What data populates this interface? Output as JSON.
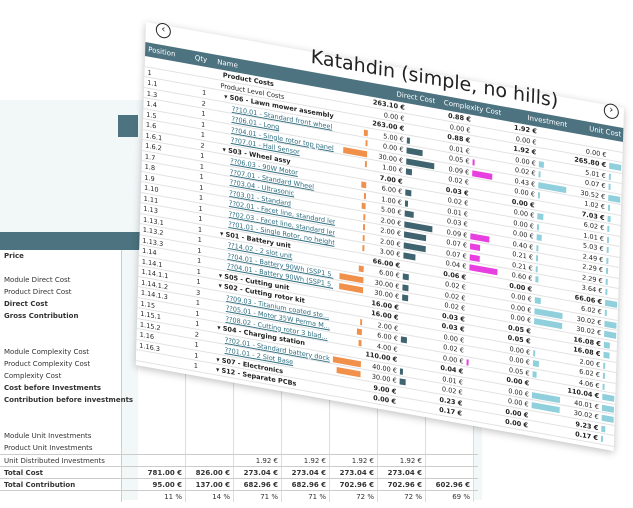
{
  "background_table": {
    "rows": [
      {
        "label": "Price",
        "bold": true,
        "values": []
      },
      {
        "label": "",
        "values": []
      },
      {
        "label": "Module Direct Cost",
        "values": []
      },
      {
        "label": "Product Direct Cost",
        "values": []
      },
      {
        "label": "Direct Cost",
        "bold": true,
        "values": []
      },
      {
        "label": "Gross Contribution",
        "bold": true,
        "values": []
      },
      {
        "label": "",
        "values": []
      },
      {
        "label": "",
        "values": []
      },
      {
        "label": "Module Complexity Cost",
        "values": []
      },
      {
        "label": "Product Complexity Cost",
        "values": []
      },
      {
        "label": "Complexity Cost",
        "values": []
      },
      {
        "label": "Cost before Investments",
        "bold": true,
        "values": []
      },
      {
        "label": "Contribution before investments",
        "bold": true,
        "values": []
      },
      {
        "label": "",
        "values": []
      },
      {
        "label": "",
        "values": []
      },
      {
        "label": "Module Unit Investments",
        "values": []
      },
      {
        "label": "Product Unit Investments",
        "values": []
      },
      {
        "label": "Unit Distributed Investments",
        "values": [
          "",
          "",
          "1.92 €",
          "1.92 €",
          "1.92 €",
          "1.92 €",
          ""
        ]
      },
      {
        "label": "Total Cost",
        "bold": true,
        "values": [
          "781.00 €",
          "826.00 €",
          "273.04 €",
          "273.04 €",
          "273.04 €",
          "273.04 €",
          ""
        ]
      },
      {
        "label": "Total Contribution",
        "bold": true,
        "values": [
          "95.00 €",
          "137.00 €",
          "682.96 €",
          "682.96 €",
          "702.96 €",
          "702.96 €",
          "602.96 €"
        ]
      },
      {
        "label": "",
        "values": [
          "11 %",
          "14 %",
          "71 %",
          "71 %",
          "72 %",
          "72 %",
          "69 %"
        ]
      }
    ]
  },
  "card": {
    "title": "Katahdin (simple, no hills)",
    "prev_icon": "chevron-left-circle",
    "next_icon": "chevron-right-circle",
    "columns": {
      "position": "Position",
      "qty": "Qty",
      "name": "Name",
      "direct": "Direct Cost",
      "complexity": "Complexity Cost",
      "investment": "Investment",
      "unit": "Unit Cost"
    },
    "colors": {
      "header": "#4d7380",
      "direct_bar": "#f0904a",
      "complexity_bar": "#3f6470",
      "investment_bar": "#e83fe0",
      "unit_bar": "#8fd0dc"
    },
    "rows": [
      {
        "pos": "",
        "qty": "",
        "name": "Product Costs",
        "type": "bold",
        "direct": "263.10 €",
        "complexity": "0.88 €",
        "investment": "1.92 €",
        "unit": ""
      },
      {
        "pos": "1",
        "qty": "",
        "name": "Product Level Costs",
        "type": "plain",
        "direct": "0.00 €",
        "complexity": "0.00 €",
        "investment": "0.00 €",
        "unit": "0.00 €"
      },
      {
        "pos": "1.1",
        "qty": "1",
        "name": "▾ S06 - Lawn mower assembly",
        "type": "bold",
        "direct": "263.00 €",
        "complexity": "0.88 €",
        "investment": "1.92 €",
        "unit": "265.80 €"
      },
      {
        "pos": "1.3",
        "qty": "2",
        "name": "??10.01 - Standard front wheel",
        "type": "link",
        "direct": "5.00 €",
        "complexity": "0.01 €",
        "investment": "0.00 €",
        "unit": "5.01 €"
      },
      {
        "pos": "1.4",
        "qty": "1",
        "name": "??06.01 - Long",
        "type": "link",
        "direct": "0.00 €",
        "complexity": "0.05 €",
        "investment": "0.02 €",
        "unit": "0.07 €"
      },
      {
        "pos": "1.5",
        "qty": "1",
        "name": "??04.01 - Single rotor top panel",
        "type": "link",
        "direct": "30.00 €",
        "complexity": "0.09 €",
        "investment": "0.43 €",
        "unit": "30.52 €"
      },
      {
        "pos": "1.6",
        "qty": "1",
        "name": "??07.01 - Hall Sensor",
        "type": "link",
        "direct": "1.00 €",
        "complexity": "0.02 €",
        "investment": "0.00 €",
        "unit": "1.02 €"
      },
      {
        "pos": "1.6.1",
        "qty": "2",
        "name": "▾ S03 - Wheel assy",
        "type": "bold",
        "direct": "7.00 €",
        "complexity": "0.03 €",
        "investment": "0.00 €",
        "unit": "7.03 €"
      },
      {
        "pos": "1.6.2",
        "qty": "1",
        "name": "??06.03 - 90W Motor",
        "type": "link",
        "direct": "6.00 €",
        "complexity": "0.02 €",
        "investment": "0.00 €",
        "unit": "6.02 €"
      },
      {
        "pos": "1.7",
        "qty": "1",
        "name": "??07.01 - Standard Wheel",
        "type": "link",
        "direct": "1.00 €",
        "complexity": "0.01 €",
        "investment": "0.00 €",
        "unit": "1.01 €"
      },
      {
        "pos": "1.8",
        "qty": "1",
        "name": "??03.04 - Ultrasonic",
        "type": "link",
        "direct": "5.00 €",
        "complexity": "0.03 €",
        "investment": "0.00 €",
        "unit": "5.03 €"
      },
      {
        "pos": "1.9",
        "qty": "1",
        "name": "??03.01 - Standard",
        "type": "link",
        "direct": "2.00 €",
        "complexity": "0.09 €",
        "investment": "0.40 €",
        "unit": "2.49 €"
      },
      {
        "pos": "1.10",
        "qty": "1",
        "name": "??02.01 - Facet line, standard length, ...",
        "type": "link",
        "direct": "2.00 €",
        "complexity": "0.07 €",
        "investment": "0.21 €",
        "unit": "2.29 €"
      },
      {
        "pos": "1.11",
        "qty": "1",
        "name": "??02.03 - Facet line, standard length, ...",
        "type": "link",
        "direct": "2.00 €",
        "complexity": "0.07 €",
        "investment": "0.21 €",
        "unit": "2.29 €"
      },
      {
        "pos": "1.13",
        "qty": "1",
        "name": "??01.01 - Single Rotor, no height adju...",
        "type": "link",
        "direct": "3.00 €",
        "complexity": "0.04 €",
        "investment": "0.60 €",
        "unit": "3.64 €"
      },
      {
        "pos": "1.13.1",
        "qty": "1",
        "name": "▾ S01 - Battery unit",
        "type": "bold",
        "direct": "66.00 €",
        "complexity": "0.06 €",
        "investment": "0.00 €",
        "unit": "66.06 €"
      },
      {
        "pos": "1.13.2",
        "qty": "1",
        "name": "??14.02 - 2 slot unit",
        "type": "link",
        "direct": "6.00 €",
        "complexity": "0.02 €",
        "investment": "0.00 €",
        "unit": "6.02 €"
      },
      {
        "pos": "1.13.3",
        "qty": "1",
        "name": "??04.01 - Battery 90Wh (SSP1 5 x...",
        "type": "link",
        "direct": "30.00 €",
        "complexity": "0.02 €",
        "investment": "0.00 €",
        "unit": "30.02 €"
      },
      {
        "pos": "1.14",
        "qty": "1",
        "name": "??04.01 - Battery 90Wh (SSP1 5 x...",
        "type": "link",
        "direct": "30.00 €",
        "complexity": "0.02 €",
        "investment": "0.00 €",
        "unit": "30.02 €"
      },
      {
        "pos": "1.14.1",
        "qty": "1",
        "name": "▾ S05 - Cutting unit",
        "type": "bold",
        "direct": "16.00 €",
        "complexity": "0.03 €",
        "investment": "0.05 €",
        "unit": "16.08 €"
      },
      {
        "pos": "1.14.1.1",
        "qty": "1",
        "name": "▾ S02 - Cutting rotor kit",
        "type": "bold",
        "direct": "16.00 €",
        "complexity": "0.03 €",
        "investment": "0.05 €",
        "unit": "16.08 €"
      },
      {
        "pos": "1.14.1.2",
        "qty": "3",
        "name": "??09.03 - Titanium coated ste...",
        "type": "link",
        "direct": "2.00 €",
        "complexity": "0.00 €",
        "investment": "0.00 €",
        "unit": "2.00 €"
      },
      {
        "pos": "1.14.1.3",
        "qty": "1",
        "name": "??05.01 - Motor 35W Perma M...",
        "type": "link",
        "direct": "6.00 €",
        "complexity": "0.02 €",
        "investment": "0.00 €",
        "unit": "6.02 €"
      },
      {
        "pos": "1.15",
        "qty": "1",
        "name": "??08.02 - Cutting rotor 3 blad...",
        "type": "link",
        "direct": "4.00 €",
        "complexity": "0.00 €",
        "investment": "0.05 €",
        "unit": "4.06 €"
      },
      {
        "pos": "1.15.1",
        "qty": "1",
        "name": "▾ S04 - Charging station",
        "type": "bold",
        "direct": "110.00 €",
        "complexity": "0.04 €",
        "investment": "0.00 €",
        "unit": "110.04 €"
      },
      {
        "pos": "1.15.2",
        "qty": "2",
        "name": "??02.01 - Standard battery dock",
        "type": "link",
        "direct": "40.00 €",
        "complexity": "0.01 €",
        "investment": "0.00 €",
        "unit": "40.01 €"
      },
      {
        "pos": "1.16",
        "qty": "1",
        "name": "??01.01 - 2 Slot Base",
        "type": "link",
        "direct": "30.00 €",
        "complexity": "0.02 €",
        "investment": "0.00 €",
        "unit": "30.02 €"
      },
      {
        "pos": "1.16.3",
        "qty": "1",
        "name": "▾ S07 - Electronics",
        "type": "bold",
        "direct": "9.00 €",
        "complexity": "0.23 €",
        "investment": "0.00 €",
        "unit": "9.23 €"
      },
      {
        "pos": "",
        "qty": "1",
        "name": "▾ S12 - Separate PCBs",
        "type": "bold",
        "direct": "0.00 €",
        "complexity": "0.17 €",
        "investment": "0.00 €",
        "unit": "0.17 €"
      }
    ]
  }
}
